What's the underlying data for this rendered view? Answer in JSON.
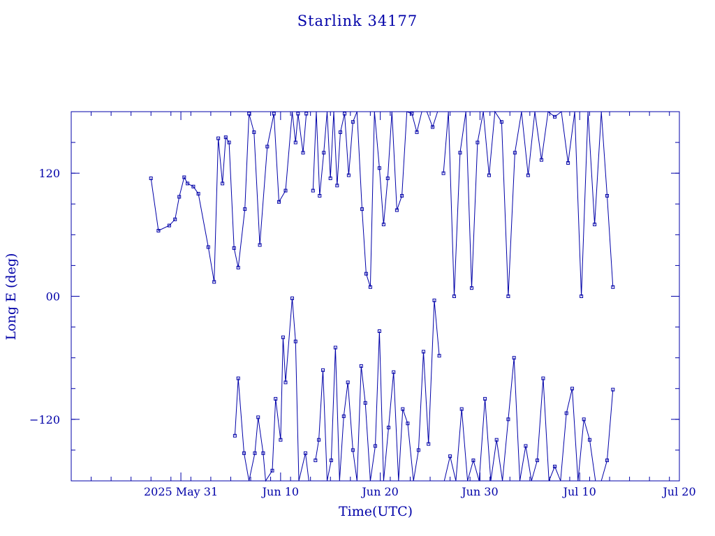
{
  "chart_data": {
    "type": "line",
    "title": "Starlink 34177",
    "xlabel": "Time(UTC)",
    "ylabel": "Long E (deg)",
    "color": "#0000a8",
    "x_type": "date",
    "xlim": [
      "2025-05-20T00:00",
      "2025-07-20T00:00"
    ],
    "ylim": [
      -180,
      180
    ],
    "x_ticks": [
      {
        "value": "2025-05-31",
        "label": "2025 May 31"
      },
      {
        "value": "2025-06-10",
        "label": "Jun 10"
      },
      {
        "value": "2025-06-20",
        "label": "Jun 20"
      },
      {
        "value": "2025-06-30",
        "label": "Jun 30"
      },
      {
        "value": "2025-07-10",
        "label": "Jul 10"
      },
      {
        "value": "2025-07-20",
        "label": "Jul 20"
      }
    ],
    "y_ticks": [
      {
        "value": -120,
        "label": "−120"
      },
      {
        "value": 0,
        "label": "00"
      },
      {
        "value": 120,
        "label": "120"
      }
    ],
    "grid": false,
    "markers": "square",
    "series": [
      {
        "x": [
          "2025-05-28T00:00",
          "2025-05-28T18:00",
          "2025-05-29T20:00",
          "2025-05-30T10:00",
          "2025-05-30T20:00",
          "2025-05-31T08:00",
          "2025-05-31T16:00",
          "2025-06-01T06:00",
          "2025-06-01T18:00",
          "2025-06-02T18:00",
          "2025-06-03T08:00",
          "2025-06-03T18:00",
          "2025-06-04T04:00",
          "2025-06-04T12:00",
          "2025-06-04T20:00",
          "2025-06-05T08:00",
          "2025-06-05T18:00",
          "2025-06-06T10:00",
          "2025-06-06T20:00",
          "2025-06-07T08:00",
          "2025-06-07T22:00",
          "2025-06-08T16:00",
          "2025-06-09T08:00",
          "2025-06-09T20:00",
          "2025-06-10T12:00",
          "2025-06-11T04:00",
          "2025-06-11T12:00",
          "2025-06-11T18:00",
          "2025-06-12T06:00",
          "2025-06-12T14:00"
        ],
        "y": [
          115,
          64,
          69,
          75,
          97,
          116,
          110,
          107,
          100,
          48,
          14,
          154,
          110,
          155,
          150,
          47,
          28,
          85,
          178,
          160,
          50,
          146,
          178,
          92,
          103,
          180,
          150,
          178,
          140,
          178
        ]
      },
      {
        "x": [
          "2025-06-13T06:00",
          "2025-06-13T14:00",
          "2025-06-13T22:00",
          "2025-06-14T08:00",
          "2025-06-14T16:00",
          "2025-06-15T00:00",
          "2025-06-15T08:00",
          "2025-06-15T16:00",
          "2025-06-16T00:00",
          "2025-06-16T10:00",
          "2025-06-16T20:00",
          "2025-06-17T06:00",
          "2025-06-17T16:00",
          "2025-06-18T04:00",
          "2025-06-18T14:00",
          "2025-06-19T00:00",
          "2025-06-19T10:00",
          "2025-06-19T22:00",
          "2025-06-20T08:00",
          "2025-06-20T18:00",
          "2025-06-21T04:00",
          "2025-06-21T16:00",
          "2025-06-22T04:00",
          "2025-06-22T16:00",
          "2025-06-23T04:00",
          "2025-06-23T16:00",
          "2025-06-24T04:00",
          "2025-06-24T16:00",
          "2025-06-25T06:00",
          "2025-06-25T18:00"
        ],
        "y": [
          103,
          180,
          98,
          140,
          180,
          115,
          180,
          108,
          160,
          178,
          118,
          170,
          180,
          85,
          22,
          9,
          180,
          125,
          70,
          115,
          180,
          84,
          98,
          180,
          178,
          160,
          180,
          180,
          165,
          180
        ]
      },
      {
        "x": [
          "2025-06-26T08:00",
          "2025-06-26T20:00",
          "2025-06-27T10:00",
          "2025-06-28T00:00",
          "2025-06-28T14:00",
          "2025-06-29T04:00",
          "2025-06-29T18:00",
          "2025-06-30T08:00",
          "2025-06-30T22:00",
          "2025-07-01T12:00",
          "2025-07-02T04:00",
          "2025-07-02T20:00",
          "2025-07-03T12:00",
          "2025-07-04T04:00",
          "2025-07-04T20:00",
          "2025-07-05T12:00",
          "2025-07-06T04:00",
          "2025-07-06T20:00",
          "2025-07-07T12:00",
          "2025-07-08T04:00",
          "2025-07-08T20:00",
          "2025-07-09T12:00",
          "2025-07-10T04:00",
          "2025-07-10T20:00",
          "2025-07-11T12:00",
          "2025-07-12T04:00",
          "2025-07-12T18:00",
          "2025-07-13T08:00"
        ],
        "y": [
          120,
          180,
          0,
          140,
          180,
          8,
          150,
          180,
          118,
          180,
          170,
          0,
          140,
          180,
          118,
          180,
          133,
          180,
          175,
          180,
          130,
          180,
          0,
          180,
          70,
          180,
          98,
          9
        ]
      },
      {
        "x": [
          "2025-06-05T10:00",
          "2025-06-05T18:00",
          "2025-06-06T08:00",
          "2025-06-06T20:00",
          "2025-06-07T10:00",
          "2025-06-07T18:00",
          "2025-06-08T06:00",
          "2025-06-08T12:00",
          "2025-06-09T04:00",
          "2025-06-09T12:00",
          "2025-06-10T00:00",
          "2025-06-10T06:00",
          "2025-06-10T12:00",
          "2025-06-11T04:00",
          "2025-06-11T12:00",
          "2025-06-11T20:00",
          "2025-06-12T12:00",
          "2025-06-12T20:00"
        ],
        "y": [
          -136,
          -80,
          -153,
          -180,
          -153,
          -118,
          -153,
          -180,
          -170,
          -100,
          -140,
          -40,
          -84,
          -2,
          -44,
          -180,
          -153,
          -180
        ]
      },
      {
        "x": [
          "2025-06-13T12:00",
          "2025-06-13T20:00",
          "2025-06-14T06:00",
          "2025-06-14T16:00",
          "2025-06-15T02:00",
          "2025-06-15T12:00",
          "2025-06-15T22:00",
          "2025-06-16T08:00",
          "2025-06-16T18:00",
          "2025-06-17T06:00",
          "2025-06-17T16:00",
          "2025-06-18T02:00",
          "2025-06-18T12:00",
          "2025-06-19T00:00",
          "2025-06-19T12:00",
          "2025-06-19T22:00",
          "2025-06-20T08:00",
          "2025-06-20T20:00",
          "2025-06-21T08:00",
          "2025-06-21T20:00",
          "2025-06-22T06:00",
          "2025-06-22T18:00",
          "2025-06-23T08:00",
          "2025-06-23T20:00",
          "2025-06-24T08:00",
          "2025-06-24T20:00",
          "2025-06-25T10:00",
          "2025-06-25T22:00"
        ],
        "y": [
          -160,
          -140,
          -72,
          -180,
          -160,
          -50,
          -180,
          -117,
          -84,
          -150,
          -180,
          -68,
          -104,
          -180,
          -146,
          -34,
          -180,
          -128,
          -74,
          -180,
          -110,
          -124,
          -180,
          -150,
          -54,
          -144,
          -4,
          -58
        ]
      },
      {
        "x": [
          "2025-06-26T10:00",
          "2025-06-27T00:00",
          "2025-06-27T14:00",
          "2025-06-28T04:00",
          "2025-06-28T18:00",
          "2025-06-29T08:00",
          "2025-06-29T22:00",
          "2025-06-30T12:00",
          "2025-07-01T02:00",
          "2025-07-01T16:00",
          "2025-07-02T06:00",
          "2025-07-02T20:00",
          "2025-07-03T10:00",
          "2025-07-04T00:00",
          "2025-07-04T14:00",
          "2025-07-05T04:00",
          "2025-07-05T18:00",
          "2025-07-06T08:00",
          "2025-07-06T22:00",
          "2025-07-07T12:00",
          "2025-07-08T02:00",
          "2025-07-08T16:00",
          "2025-07-09T06:00",
          "2025-07-09T20:00",
          "2025-07-10T10:00",
          "2025-07-11T00:00",
          "2025-07-11T14:00",
          "2025-07-12T04:00",
          "2025-07-12T18:00",
          "2025-07-13T08:00"
        ],
        "y": [
          -180,
          -156,
          -180,
          -110,
          -180,
          -160,
          -180,
          -100,
          -180,
          -140,
          -180,
          -120,
          -60,
          -180,
          -146,
          -180,
          -160,
          -80,
          -180,
          -166,
          -180,
          -114,
          -90,
          -180,
          -120,
          -140,
          -180,
          -180,
          -160,
          -91
        ]
      }
    ]
  }
}
